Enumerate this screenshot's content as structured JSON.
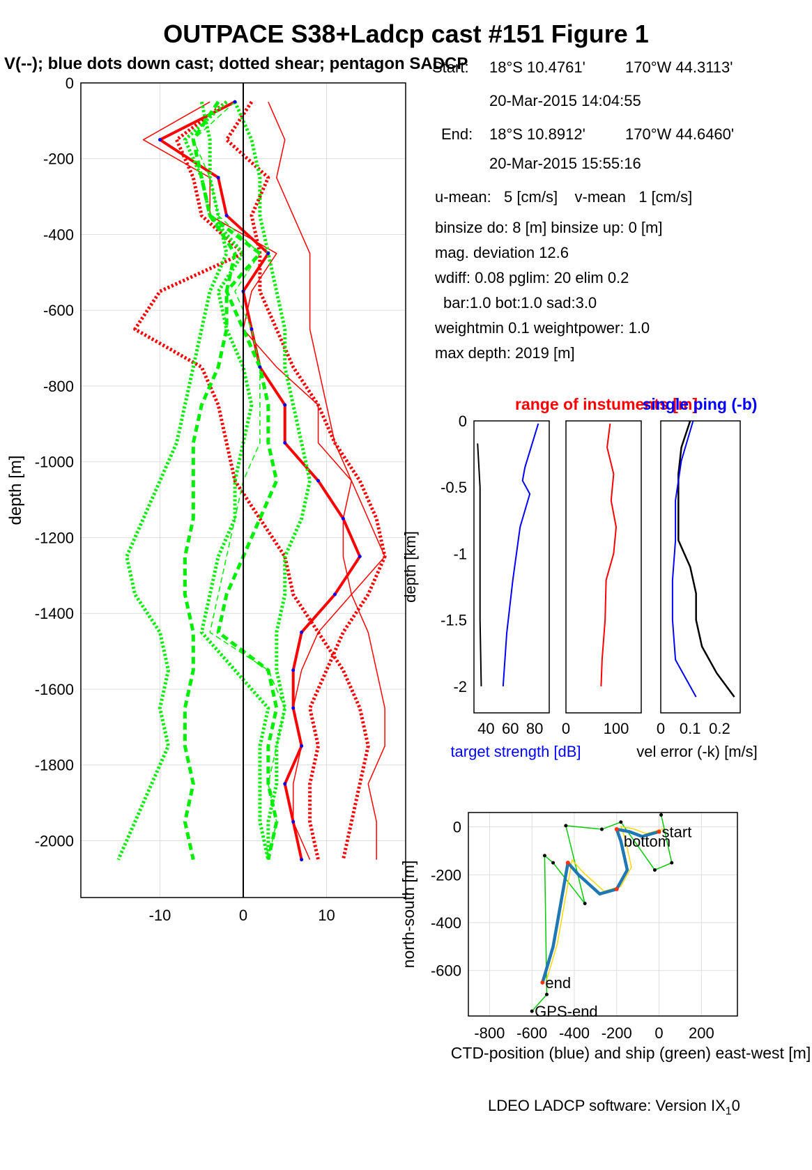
{
  "title": "OUTPACE S38+Ladcp cast #151  Figure 1",
  "subtitle": "V(--); blue dots down cast; dotted shear; pentagon SADCP",
  "info": {
    "start_label": "Start:",
    "start_lat": "18°S 10.4761'",
    "start_lon": "170°W 44.3113'",
    "start_time": "20-Mar-2015 14:04:55",
    "end_label": "End:",
    "end_lat": "18°S 10.8912'",
    "end_lon": "170°W 44.6460'",
    "end_time": "20-Mar-2015 15:55:16",
    "means": "u-mean:   5 [cm/s]    v-mean   1 [cm/s]",
    "binsize": "binsize do: 8 [m]  binsize up:  0 [m]",
    "mag": "mag. deviation 12.6",
    "wdiff": "wdiff: 0.08  pglim: 20  elim 0.2",
    "bar": "bar:1.0 bot:1.0 sad:3.0",
    "weight": "weightmin 0.1  weightpower: 1.0",
    "maxdepth": "max depth: 2019 [m]"
  },
  "footer": "LDEO LADCP software: Version IX",
  "footer_sub": "1",
  "footer_end": "0",
  "colors": {
    "u": "#ff0000",
    "v": "#00ee00",
    "dots": "#0000ff",
    "ts": "#0000ff",
    "range": "#ff0000",
    "err": "#000000",
    "ctd": "#1f77b4",
    "ship": "#00cc00",
    "yellow": "#ffd700"
  },
  "chart_data": [
    {
      "type": "line",
      "ylabel": "depth [m]",
      "xlim": [
        -19.5,
        19.5
      ],
      "ylim": [
        -2150,
        0
      ],
      "xticks": [
        -10,
        0,
        10
      ],
      "yticks": [
        0,
        -200,
        -400,
        -600,
        -800,
        -1000,
        -1200,
        -1400,
        -1600,
        -1800,
        -2000
      ],
      "depth": [
        -50,
        -150,
        -250,
        -350,
        -450,
        -550,
        -650,
        -750,
        -850,
        -950,
        -1050,
        -1150,
        -1250,
        -1350,
        -1450,
        -1550,
        -1650,
        -1750,
        -1850,
        -1950,
        -2050
      ],
      "series": [
        {
          "values": [
            -1,
            -10,
            -3,
            -2,
            3,
            0,
            1,
            2,
            5,
            5,
            9,
            12,
            14,
            11,
            7,
            6,
            6,
            7,
            5,
            6,
            7
          ]
        },
        {
          "values": [
            -4,
            -12,
            -4,
            -4,
            4,
            1,
            0,
            4,
            9,
            9,
            13,
            15,
            17,
            13,
            9,
            7,
            6,
            7,
            6,
            6,
            8
          ]
        },
        {
          "values": [
            1,
            -2,
            3,
            1,
            2,
            2,
            4,
            6,
            9,
            11,
            14,
            16,
            17,
            15,
            12,
            10,
            8,
            9,
            8,
            8,
            9
          ]
        },
        {
          "values": [
            -2,
            -8,
            -6,
            -5,
            0,
            -10,
            -13,
            -5,
            -3,
            -2,
            -1,
            2,
            5,
            6,
            9,
            12,
            14,
            15,
            14,
            13,
            12
          ]
        },
        {
          "values": [
            -3,
            -6,
            -5,
            -4,
            2,
            -2,
            0,
            2,
            3,
            3,
            4,
            2,
            0,
            -2,
            -3,
            3,
            4,
            3,
            3,
            4,
            3
          ]
        },
        {
          "values": [
            -1,
            -6,
            -4,
            -3,
            2,
            -1,
            1,
            2,
            2,
            2,
            0,
            -1,
            -2,
            -3,
            -4,
            3,
            5,
            4,
            3,
            4,
            3
          ]
        },
        {
          "values": [
            -2,
            -7,
            -5,
            -4,
            0,
            -3,
            -2,
            0,
            1,
            0,
            -1,
            -1,
            -3,
            -4,
            -5,
            -1,
            3,
            2,
            2,
            2,
            3
          ]
        },
        {
          "values": [
            3,
            5,
            4,
            6,
            8,
            8,
            8,
            9,
            10,
            11,
            13,
            12,
            12,
            13,
            15,
            16,
            17,
            17,
            15,
            16,
            16
          ]
        },
        {
          "values": [
            -1,
            1,
            2,
            2,
            3,
            4,
            5,
            5,
            6,
            7,
            8,
            7,
            5,
            5,
            4,
            4,
            5,
            4,
            4,
            3,
            3
          ]
        },
        {
          "values": [
            -5,
            -4,
            -4,
            -3,
            -2,
            -4,
            -5,
            -6,
            -7,
            -8,
            -10,
            -12,
            -14,
            -13,
            -10,
            -9,
            -10,
            -9,
            -11,
            -13,
            -15
          ]
        },
        {
          "values": [
            -3,
            -6,
            -5,
            -4,
            -1,
            -2,
            -2,
            -3,
            -5,
            -6,
            -6,
            -6,
            -7,
            -7,
            -6,
            -6,
            -7,
            -7,
            -6,
            -7,
            -6
          ]
        }
      ]
    },
    {
      "type": "line",
      "ylabel": "depth [km]",
      "title_left": "range of instuments [m]",
      "title_right": "single ping (-b)",
      "ylim": [
        -2.2,
        0
      ],
      "yticks": [
        0,
        -0.5,
        -1,
        -1.5,
        -2
      ],
      "panels": [
        {
          "xticks": [
            40,
            60,
            80
          ],
          "xlim": [
            30,
            92
          ],
          "xlabel": "target strength [dB]",
          "series": [
            {
              "depth": [
                -0.02,
                -0.2,
                -0.35,
                -0.45,
                -0.55,
                -0.8,
                -1.2,
                -1.6,
                -2.0
              ],
              "values": [
                83,
                77,
                72,
                70,
                76,
                68,
                62,
                57,
                54
              ]
            },
            {
              "depth": [
                -0.17,
                -0.5,
                -1.0,
                -1.5,
                -2.0
              ],
              "values": [
                33,
                35,
                35,
                35,
                36
              ]
            }
          ]
        },
        {
          "xticks": [
            0,
            100
          ],
          "xlim": [
            0,
            150
          ],
          "series": [
            {
              "depth": [
                -0.02,
                -0.2,
                -0.4,
                -0.6,
                -0.8,
                -1.0,
                -1.2,
                -1.5,
                -1.8,
                -2.0
              ],
              "values": [
                88,
                82,
                95,
                90,
                100,
                95,
                80,
                78,
                72,
                70
              ]
            }
          ]
        },
        {
          "xticks": [
            0,
            0.1,
            0.2
          ],
          "xlim": [
            0,
            0.27
          ],
          "xlabel": "vel error (-k) [m/s]",
          "series": [
            {
              "depth": [
                0.0,
                -0.2,
                -0.4,
                -0.6,
                -0.9,
                -1.1,
                -1.3,
                -1.5,
                -1.7,
                -1.9,
                -2.08
              ],
              "values": [
                0.1,
                0.07,
                0.06,
                0.06,
                0.06,
                0.1,
                0.12,
                0.12,
                0.14,
                0.19,
                0.25
              ]
            },
            {
              "depth": [
                0.0,
                -0.3,
                -0.6,
                -0.9,
                -1.2,
                -1.5,
                -1.8,
                -2.08
              ],
              "values": [
                0.11,
                0.07,
                0.05,
                0.05,
                0.04,
                0.04,
                0.05,
                0.12
              ]
            }
          ]
        }
      ]
    },
    {
      "type": "line",
      "xlabel": "CTD-position (blue) and ship (green) east-west [m]",
      "ylabel": "north-south [m]",
      "xlim": [
        -900,
        370
      ],
      "ylim": [
        -790,
        60
      ],
      "xticks": [
        -800,
        -600,
        -400,
        -200,
        0,
        200
      ],
      "yticks": [
        0,
        -200,
        -400,
        -600
      ],
      "ctd": {
        "x": [
          0,
          -80,
          -140,
          -200,
          -180,
          -150,
          -200,
          -280,
          -380,
          -430,
          -460,
          -500,
          -550
        ],
        "y": [
          -20,
          -40,
          -20,
          -10,
          -60,
          -180,
          -260,
          -280,
          -200,
          -150,
          -300,
          -500,
          -650
        ]
      },
      "ship": {
        "x": [
          10,
          60,
          -20,
          -180,
          -270,
          -440,
          -350,
          -500,
          -540,
          -530,
          -600
        ],
        "y": [
          50,
          -150,
          -180,
          20,
          -10,
          5,
          -320,
          -150,
          -120,
          -700,
          -770
        ]
      },
      "labels": [
        {
          "text": "start",
          "x": 0,
          "y": -20
        },
        {
          "text": "bottom",
          "x": -180,
          "y": -60
        },
        {
          "text": "end",
          "x": -550,
          "y": -650
        },
        {
          "text": "GPS-end",
          "x": -600,
          "y": -770
        }
      ]
    }
  ]
}
